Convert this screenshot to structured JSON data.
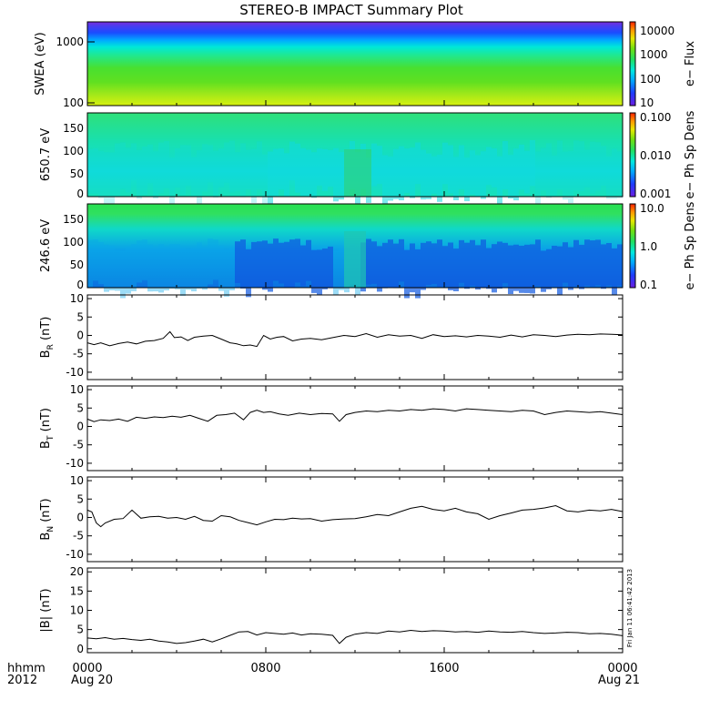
{
  "chart_data": {
    "title": "STEREO-B IMPACT Summary Plot",
    "type": "multi-panel",
    "x_axis": {
      "range_hours": [
        0,
        24
      ],
      "ticks": [
        {
          "hour": 0,
          "label": "0000",
          "sublabel": "Aug 20"
        },
        {
          "hour": 8,
          "label": "0800",
          "sublabel": ""
        },
        {
          "hour": 16,
          "label": "1600",
          "sublabel": ""
        },
        {
          "hour": 24,
          "label": "0000",
          "sublabel": "Aug 21"
        }
      ],
      "left_labels": [
        "hhmm",
        "2012"
      ]
    },
    "timestamp_note": "Fri Jan 11 06:41:42 2013",
    "spectrograms": [
      {
        "id": "swea",
        "ylabel": "SWEA (eV)",
        "y_ticks": [
          "1000",
          "100"
        ],
        "colorbar_label": "e− Flux",
        "colorbar_ticks": [
          "10000",
          "1000",
          "100",
          "10"
        ]
      },
      {
        "id": "pad650",
        "ylabel": "650.7 eV",
        "y_ticks": [
          "150",
          "100",
          "50",
          "0"
        ],
        "colorbar_label": "e− Ph Sp Dens",
        "colorbar_ticks": [
          "0.100",
          "0.010",
          "0.001"
        ]
      },
      {
        "id": "pad246",
        "ylabel": "246.6 eV",
        "y_ticks": [
          "150",
          "100",
          "50",
          "0"
        ],
        "colorbar_label": "e− Ph Sp Dens",
        "colorbar_ticks": [
          "10.0",
          "1.0",
          "0.1"
        ]
      }
    ],
    "line_panels": [
      {
        "id": "br",
        "ylabel": "B",
        "ylabel_sub": "R",
        "ylabel_unit": "(nT)",
        "ylim": [
          -12,
          11
        ],
        "ticks": [
          10,
          5,
          0,
          -5,
          -10
        ],
        "x": [
          0,
          0.3,
          0.6,
          1.0,
          1.4,
          1.8,
          2.2,
          2.6,
          3.0,
          3.4,
          3.7,
          3.9,
          4.2,
          4.5,
          4.8,
          5.2,
          5.6,
          6.0,
          6.4,
          6.7,
          7.0,
          7.3,
          7.6,
          7.9,
          8.2,
          8.5,
          8.8,
          9.2,
          9.6,
          10.0,
          10.5,
          11.0,
          11.5,
          12.0,
          12.5,
          13.0,
          13.5,
          14.0,
          14.5,
          15.0,
          15.5,
          16.0,
          16.5,
          17.0,
          17.5,
          18.0,
          18.5,
          19.0,
          19.5,
          20.0,
          20.5,
          21.0,
          21.5,
          22.0,
          22.5,
          23.0,
          23.5,
          24.0
        ],
        "values": [
          -2.0,
          -2.5,
          -2.0,
          -2.8,
          -2.2,
          -1.8,
          -2.3,
          -1.6,
          -1.4,
          -0.8,
          1.0,
          -0.6,
          -0.4,
          -1.4,
          -0.5,
          -0.2,
          0.0,
          -1.0,
          -2.0,
          -2.3,
          -2.8,
          -2.6,
          -3.0,
          0.0,
          -1.0,
          -0.5,
          -0.3,
          -1.5,
          -1.0,
          -0.8,
          -1.2,
          -0.6,
          0.0,
          -0.3,
          0.5,
          -0.5,
          0.2,
          -0.2,
          0.0,
          -0.8,
          0.2,
          -0.3,
          -0.1,
          -0.4,
          0.0,
          -0.2,
          -0.5,
          0.1,
          -0.4,
          0.2,
          0.0,
          -0.3,
          0.1,
          0.3,
          0.2,
          0.4,
          0.3,
          0.2
        ]
      },
      {
        "id": "bt",
        "ylabel": "B",
        "ylabel_sub": "T",
        "ylabel_unit": "(nT)",
        "ylim": [
          -12,
          11
        ],
        "ticks": [
          10,
          5,
          0,
          -5,
          -10
        ],
        "x": [
          0,
          0.3,
          0.6,
          1.0,
          1.4,
          1.8,
          2.2,
          2.6,
          3.0,
          3.4,
          3.8,
          4.2,
          4.6,
          5.0,
          5.4,
          5.8,
          6.2,
          6.6,
          7.0,
          7.3,
          7.6,
          7.9,
          8.2,
          8.6,
          9.0,
          9.5,
          10.0,
          10.5,
          11.0,
          11.3,
          11.6,
          12.0,
          12.5,
          13.0,
          13.5,
          14.0,
          14.5,
          15.0,
          15.5,
          16.0,
          16.5,
          17.0,
          17.5,
          18.0,
          18.5,
          19.0,
          19.5,
          20.0,
          20.5,
          21.0,
          21.5,
          22.0,
          22.5,
          23.0,
          23.5,
          24.0
        ],
        "values": [
          2.0,
          1.3,
          1.8,
          1.6,
          2.0,
          1.4,
          2.5,
          2.2,
          2.6,
          2.4,
          2.8,
          2.5,
          3.0,
          2.2,
          1.4,
          3.0,
          3.2,
          3.6,
          1.8,
          3.8,
          4.4,
          3.8,
          4.0,
          3.4,
          3.0,
          3.6,
          3.2,
          3.5,
          3.4,
          1.4,
          3.2,
          3.8,
          4.2,
          4.0,
          4.4,
          4.2,
          4.6,
          4.4,
          4.8,
          4.6,
          4.2,
          4.8,
          4.6,
          4.4,
          4.2,
          4.0,
          4.4,
          4.2,
          3.2,
          3.8,
          4.2,
          4.0,
          3.8,
          4.0,
          3.6,
          3.2
        ]
      },
      {
        "id": "bn",
        "ylabel": "B",
        "ylabel_sub": "N",
        "ylabel_unit": "(nT)",
        "ylim": [
          -12,
          11
        ],
        "ticks": [
          10,
          5,
          0,
          -5,
          -10
        ],
        "x": [
          0,
          0.2,
          0.4,
          0.6,
          0.8,
          1.2,
          1.6,
          2.0,
          2.4,
          2.8,
          3.2,
          3.6,
          4.0,
          4.4,
          4.8,
          5.2,
          5.6,
          6.0,
          6.4,
          6.8,
          7.2,
          7.6,
          8.0,
          8.4,
          8.8,
          9.2,
          9.6,
          10.0,
          10.5,
          11.0,
          11.5,
          12.0,
          12.5,
          13.0,
          13.5,
          14.0,
          14.5,
          15.0,
          15.5,
          16.0,
          16.5,
          17.0,
          17.5,
          18.0,
          18.5,
          19.0,
          19.5,
          20.0,
          20.5,
          21.0,
          21.5,
          22.0,
          22.5,
          23.0,
          23.5,
          24.0
        ],
        "values": [
          2.0,
          1.5,
          -1.5,
          -2.5,
          -1.5,
          -0.5,
          -0.3,
          2.0,
          -0.2,
          0.2,
          0.3,
          -0.2,
          0.0,
          -0.5,
          0.3,
          -0.8,
          -1.0,
          0.5,
          0.2,
          -0.8,
          -1.4,
          -2.0,
          -1.2,
          -0.5,
          -0.6,
          -0.2,
          -0.4,
          -0.3,
          -1.0,
          -0.6,
          -0.4,
          -0.3,
          0.2,
          0.8,
          0.5,
          1.5,
          2.5,
          3.0,
          2.2,
          1.8,
          2.5,
          1.5,
          1.0,
          -0.5,
          0.5,
          1.2,
          2.0,
          2.2,
          2.6,
          3.2,
          1.8,
          1.5,
          2.0,
          1.8,
          2.2,
          1.6
        ]
      },
      {
        "id": "bmag",
        "ylabel": "|B|",
        "ylabel_sub": "",
        "ylabel_unit": "(nT)",
        "ylim": [
          -1,
          21
        ],
        "ticks": [
          20,
          15,
          10,
          5,
          0
        ],
        "x": [
          0,
          0.4,
          0.8,
          1.2,
          1.6,
          2.0,
          2.4,
          2.8,
          3.2,
          3.6,
          4.0,
          4.4,
          4.8,
          5.2,
          5.6,
          6.0,
          6.4,
          6.8,
          7.2,
          7.6,
          8.0,
          8.4,
          8.8,
          9.2,
          9.6,
          10.0,
          10.5,
          11.0,
          11.3,
          11.6,
          12.0,
          12.5,
          13.0,
          13.5,
          14.0,
          14.5,
          15.0,
          15.5,
          16.0,
          16.5,
          17.0,
          17.5,
          18.0,
          18.5,
          19.0,
          19.5,
          20.0,
          20.5,
          21.0,
          21.5,
          22.0,
          22.5,
          23.0,
          23.5,
          24.0
        ],
        "values": [
          2.8,
          2.6,
          2.9,
          2.5,
          2.7,
          2.4,
          2.2,
          2.5,
          2.0,
          1.8,
          1.4,
          1.6,
          2.0,
          2.5,
          1.8,
          2.6,
          3.5,
          4.4,
          4.5,
          3.6,
          4.2,
          4.0,
          3.8,
          4.1,
          3.6,
          3.9,
          3.8,
          3.5,
          1.4,
          3.0,
          3.8,
          4.2,
          4.0,
          4.6,
          4.4,
          4.8,
          4.5,
          4.7,
          4.6,
          4.4,
          4.5,
          4.3,
          4.6,
          4.4,
          4.3,
          4.5,
          4.2,
          4.0,
          4.1,
          4.3,
          4.2,
          3.9,
          4.0,
          3.8,
          3.4
        ]
      }
    ]
  }
}
